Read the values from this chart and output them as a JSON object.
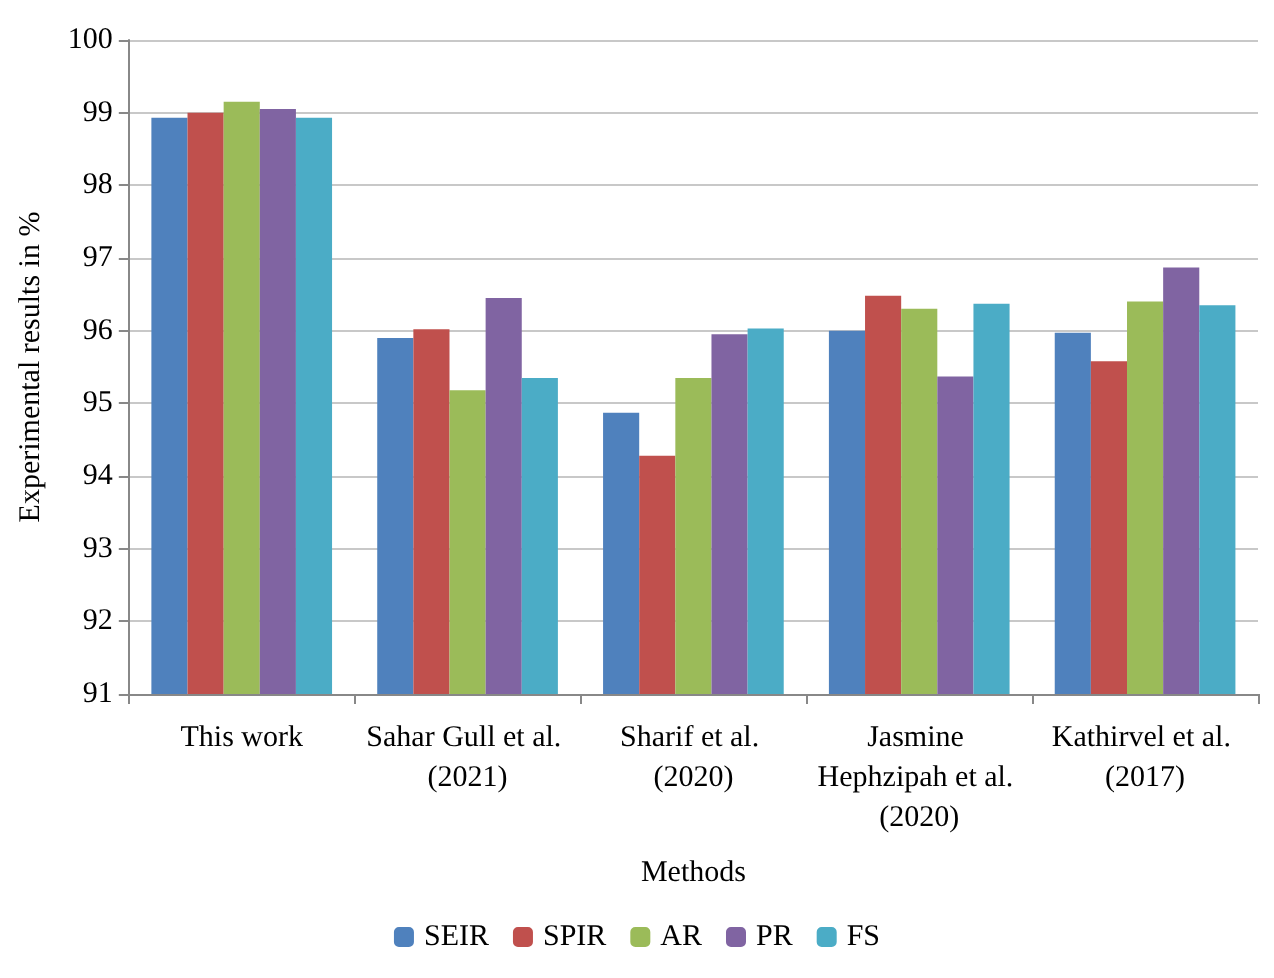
{
  "chart_data": {
    "type": "bar",
    "xlabel": "Methods",
    "ylabel": "Experimental results in %",
    "categories": [
      "This work",
      "Sahar Gull et al. (2021)",
      "Sharif et al. (2020)",
      "Jasmine Hephzipah et al. (2020)",
      "Kathirvel et al. (2017)"
    ],
    "series": [
      {
        "name": "SEIR",
        "color": "#4f81bd",
        "values": [
          98.93,
          95.9,
          94.87,
          96.0,
          95.97
        ]
      },
      {
        "name": "SPIR",
        "color": "#c0504d",
        "values": [
          99.0,
          96.02,
          94.28,
          96.48,
          95.58
        ]
      },
      {
        "name": "AR",
        "color": "#9bbb59",
        "values": [
          99.15,
          95.18,
          95.35,
          96.3,
          96.4
        ]
      },
      {
        "name": "PR",
        "color": "#8064a2",
        "values": [
          99.05,
          96.45,
          95.95,
          95.37,
          96.87
        ]
      },
      {
        "name": "FS",
        "color": "#4bacc6",
        "values": [
          98.93,
          95.35,
          96.03,
          96.37,
          96.35
        ]
      }
    ],
    "ylim": [
      91,
      100
    ],
    "yticks": [
      91,
      92,
      93,
      94,
      95,
      96,
      97,
      98,
      99,
      100
    ],
    "grid": "y",
    "legend": "bottom"
  }
}
